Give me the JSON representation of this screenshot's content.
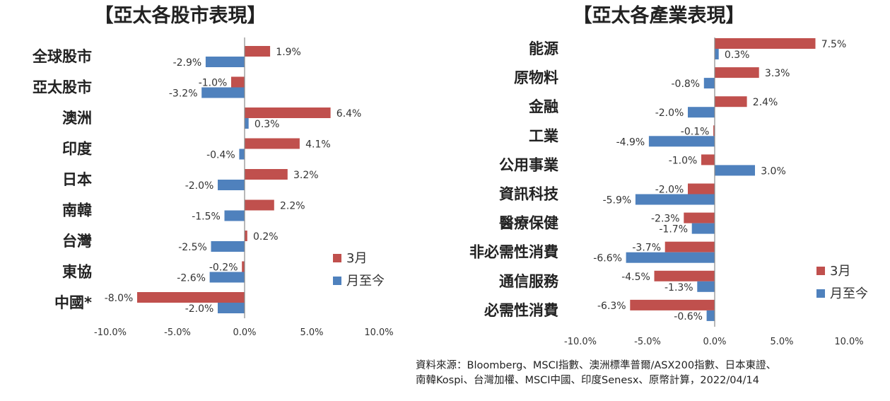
{
  "source": {
    "line1": "資料來源：Bloomberg、MSCI指數、澳洲標準普爾/ASX200指數、日本東證、",
    "line2": "南韓Kospi、台灣加權、MSCI中國、印度Senesx、原幣計算，2022/04/14"
  },
  "colors": {
    "march": "#C0504D",
    "mtd": "#4F81BD"
  },
  "chart_data": [
    {
      "type": "bar",
      "orientation": "horizontal",
      "title": "【亞太各股市表現】",
      "categories": [
        "全球股市",
        "亞太股市",
        "澳洲",
        "印度",
        "日本",
        "南韓",
        "台灣",
        "東協",
        "中國*"
      ],
      "series": [
        {
          "name": "3月",
          "values": [
            1.9,
            -1.0,
            6.4,
            4.1,
            3.2,
            2.2,
            0.2,
            -0.2,
            -8.0
          ],
          "labels": [
            "1.9%",
            "-1.0%",
            "6.4%",
            "4.1%",
            "3.2%",
            "2.2%",
            "0.2%",
            "-0.2%",
            "-8.0%"
          ]
        },
        {
          "name": "月至今",
          "values": [
            -2.9,
            -3.2,
            0.3,
            -0.4,
            -2.0,
            -1.5,
            -2.5,
            -2.6,
            -2.0
          ],
          "labels": [
            "-2.9%",
            "-3.2%",
            "0.3%",
            "-0.4%",
            "-2.0%",
            "-1.5%",
            "-2.5%",
            "-2.6%",
            "-2.0%"
          ]
        }
      ],
      "xlim": [
        -10,
        10
      ],
      "xticks": [
        "-10.0%",
        "-5.0%",
        "0.0%",
        "5.0%",
        "10.0%"
      ],
      "grid": false,
      "legend": "right"
    },
    {
      "type": "bar",
      "orientation": "horizontal",
      "title": "【亞太各產業表現】",
      "categories": [
        "能源",
        "原物料",
        "金融",
        "工業",
        "公用事業",
        "資訊科技",
        "醫療保健",
        "非必需性消費",
        "通信服務",
        "必需性消費"
      ],
      "series": [
        {
          "name": "3月",
          "values": [
            7.5,
            3.3,
            2.4,
            -0.1,
            -1.0,
            -2.0,
            -2.3,
            -3.7,
            -4.5,
            -6.3
          ],
          "labels": [
            "7.5%",
            "3.3%",
            "2.4%",
            "-0.1%",
            "-1.0%",
            "-2.0%",
            "-2.3%",
            "-3.7%",
            "-4.5%",
            "-6.3%"
          ]
        },
        {
          "name": "月至今",
          "values": [
            0.3,
            -0.8,
            -2.0,
            -4.9,
            3.0,
            -5.9,
            -1.7,
            -6.6,
            -1.3,
            -0.6
          ],
          "labels": [
            "0.3%",
            "-0.8%",
            "-2.0%",
            "-4.9%",
            "3.0%",
            "-5.9%",
            "-1.7%",
            "-6.6%",
            "-1.3%",
            "-0.6%"
          ]
        }
      ],
      "xlim": [
        -10,
        10
      ],
      "xticks": [
        "-10.0%",
        "-5.0%",
        "0.0%",
        "5.0%",
        "10.0%"
      ],
      "grid": false,
      "legend": "right"
    }
  ]
}
